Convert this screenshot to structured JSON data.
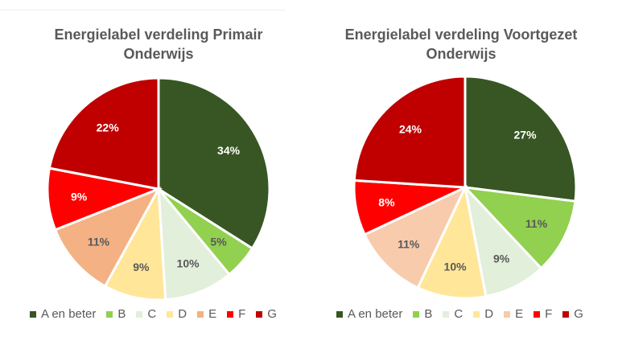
{
  "chart_data": [
    {
      "type": "pie",
      "title": "Energielabel verdeling Primair Onderwijs",
      "categories": [
        "A en beter",
        "B",
        "C",
        "D",
        "E",
        "F",
        "G"
      ],
      "values": [
        34,
        5,
        10,
        9,
        11,
        9,
        22
      ],
      "labels": [
        "34%",
        "5%",
        "10%",
        "9%",
        "11%",
        "9%",
        "22%"
      ],
      "colors": [
        "#375623",
        "#92D050",
        "#E2EFDA",
        "#FFE699",
        "#F4B183",
        "#FF0000",
        "#C00000"
      ],
      "legend_position": "bottom"
    },
    {
      "type": "pie",
      "title": "Energielabel verdeling Voortgezet Onderwijs",
      "categories": [
        "A en beter",
        "B",
        "C",
        "D",
        "E",
        "F",
        "G"
      ],
      "values": [
        27,
        11,
        9,
        10,
        11,
        8,
        24
      ],
      "labels": [
        "27%",
        "11%",
        "9%",
        "10%",
        "11%",
        "8%",
        "24%"
      ],
      "colors": [
        "#375623",
        "#92D050",
        "#E2EFDA",
        "#FFE699",
        "#F8CBAD",
        "#FF0000",
        "#C00000"
      ],
      "legend_position": "bottom"
    }
  ]
}
